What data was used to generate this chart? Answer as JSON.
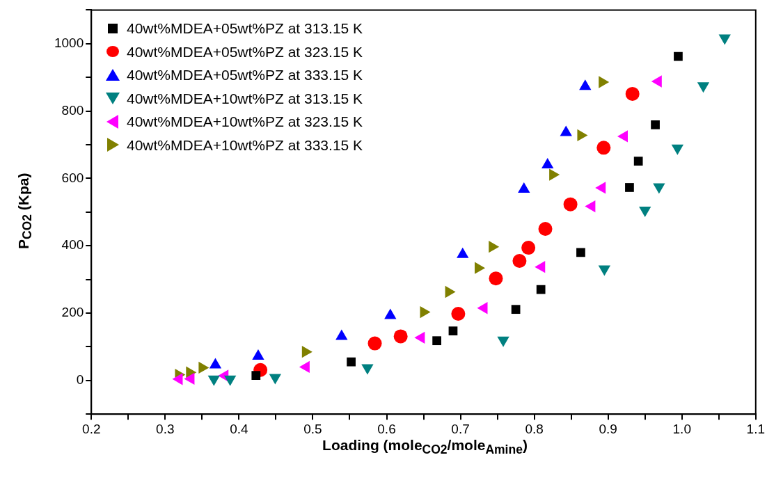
{
  "chart_data": {
    "type": "scatter",
    "xlabel": "Loading (mole$_{CO2}$/mole$_{Amine}$)",
    "ylabel": "P$_{CO2}$ (Kpa)",
    "xlim": [
      0.2,
      1.1
    ],
    "xticks": [
      {
        "value": 0.2,
        "label": "0.2"
      },
      {
        "value": 0.25,
        "label": null
      },
      {
        "value": 0.3,
        "label": "0.3"
      },
      {
        "value": 0.35,
        "label": null
      },
      {
        "value": 0.4,
        "label": "0.4"
      },
      {
        "value": 0.45,
        "label": null
      },
      {
        "value": 0.5,
        "label": "0.5"
      },
      {
        "value": 0.55,
        "label": null
      },
      {
        "value": 0.6,
        "label": "0.6"
      },
      {
        "value": 0.65,
        "label": null
      },
      {
        "value": 0.7,
        "label": "0.7"
      },
      {
        "value": 0.75,
        "label": null
      },
      {
        "value": 0.8,
        "label": "0.8"
      },
      {
        "value": 0.85,
        "label": null
      },
      {
        "value": 0.9,
        "label": "0.9"
      },
      {
        "value": 0.95,
        "label": null
      },
      {
        "value": 1.0,
        "label": "1.0"
      },
      {
        "value": 1.05,
        "label": null
      },
      {
        "value": 1.1,
        "label": "1.1"
      }
    ],
    "ylim": [
      -100,
      1100
    ],
    "yticks": [
      {
        "value": -100,
        "label": null
      },
      0,
      {
        "value": 100,
        "label": null
      },
      200,
      {
        "value": 300,
        "label": null
      },
      400,
      {
        "value": 500,
        "label": null
      },
      600,
      {
        "value": 700,
        "label": null
      },
      800,
      {
        "value": 900,
        "label": null
      },
      1000,
      {
        "value": 1100,
        "label": null
      }
    ],
    "grid": false,
    "legend": "top left",
    "series": [
      {
        "name": "40wt%MDEA+05wt%PZ at 313.15 K",
        "color": "#000000",
        "marker": "square",
        "x": [
          0.423,
          0.552,
          0.668,
          0.69,
          0.775,
          0.809,
          0.863,
          0.929,
          0.941,
          0.964,
          0.995
        ],
        "values": [
          15,
          55,
          118,
          147,
          211,
          270,
          380,
          573,
          651,
          759,
          962
        ]
      },
      {
        "name": "40wt%MDEA+05wt%PZ at 323.15 K",
        "color": "#ff0000",
        "marker": "circle",
        "x": [
          0.429,
          0.584,
          0.619,
          0.697,
          0.748,
          0.78,
          0.792,
          0.815,
          0.849,
          0.894,
          0.933
        ],
        "values": [
          31,
          110,
          131,
          198,
          303,
          355,
          394,
          450,
          523,
          691,
          851
        ]
      },
      {
        "name": "40wt%MDEA+05wt%PZ at 333.15 K",
        "color": "#0000ff",
        "marker": "triangle",
        "x": [
          0.368,
          0.426,
          0.539,
          0.605,
          0.703,
          0.786,
          0.818,
          0.843,
          0.869
        ],
        "values": [
          46,
          72,
          131,
          193,
          374,
          568,
          640,
          736,
          873
        ]
      },
      {
        "name": "40wt%MDEA+10wt%PZ at 313.15 K",
        "color": "#008080",
        "marker": "triangle-down",
        "x": [
          0.366,
          0.388,
          0.449,
          0.574,
          0.758,
          0.895,
          0.95,
          0.969,
          0.994,
          1.029,
          1.058
        ],
        "values": [
          4,
          4,
          9,
          38,
          120,
          331,
          506,
          575,
          690,
          875,
          1017
        ]
      },
      {
        "name": "40wt%MDEA+10wt%PZ at 323.15 K",
        "color": "#ff00ff",
        "marker": "triangle-left",
        "x": [
          0.319,
          0.335,
          0.381,
          0.491,
          0.647,
          0.732,
          0.81,
          0.878,
          0.892,
          0.922,
          0.968
        ],
        "values": [
          4,
          5,
          14,
          40,
          127,
          215,
          337,
          517,
          572,
          725,
          888
        ]
      },
      {
        "name": "40wt%MDEA+10wt%PZ at 333.15 K",
        "color": "#808000",
        "marker": "triangle-right",
        "x": [
          0.318,
          0.333,
          0.35,
          0.49,
          0.65,
          0.684,
          0.724,
          0.743,
          0.825,
          0.863,
          0.892
        ],
        "values": [
          17,
          24,
          38,
          85,
          203,
          263,
          334,
          397,
          611,
          728,
          886
        ]
      }
    ]
  }
}
